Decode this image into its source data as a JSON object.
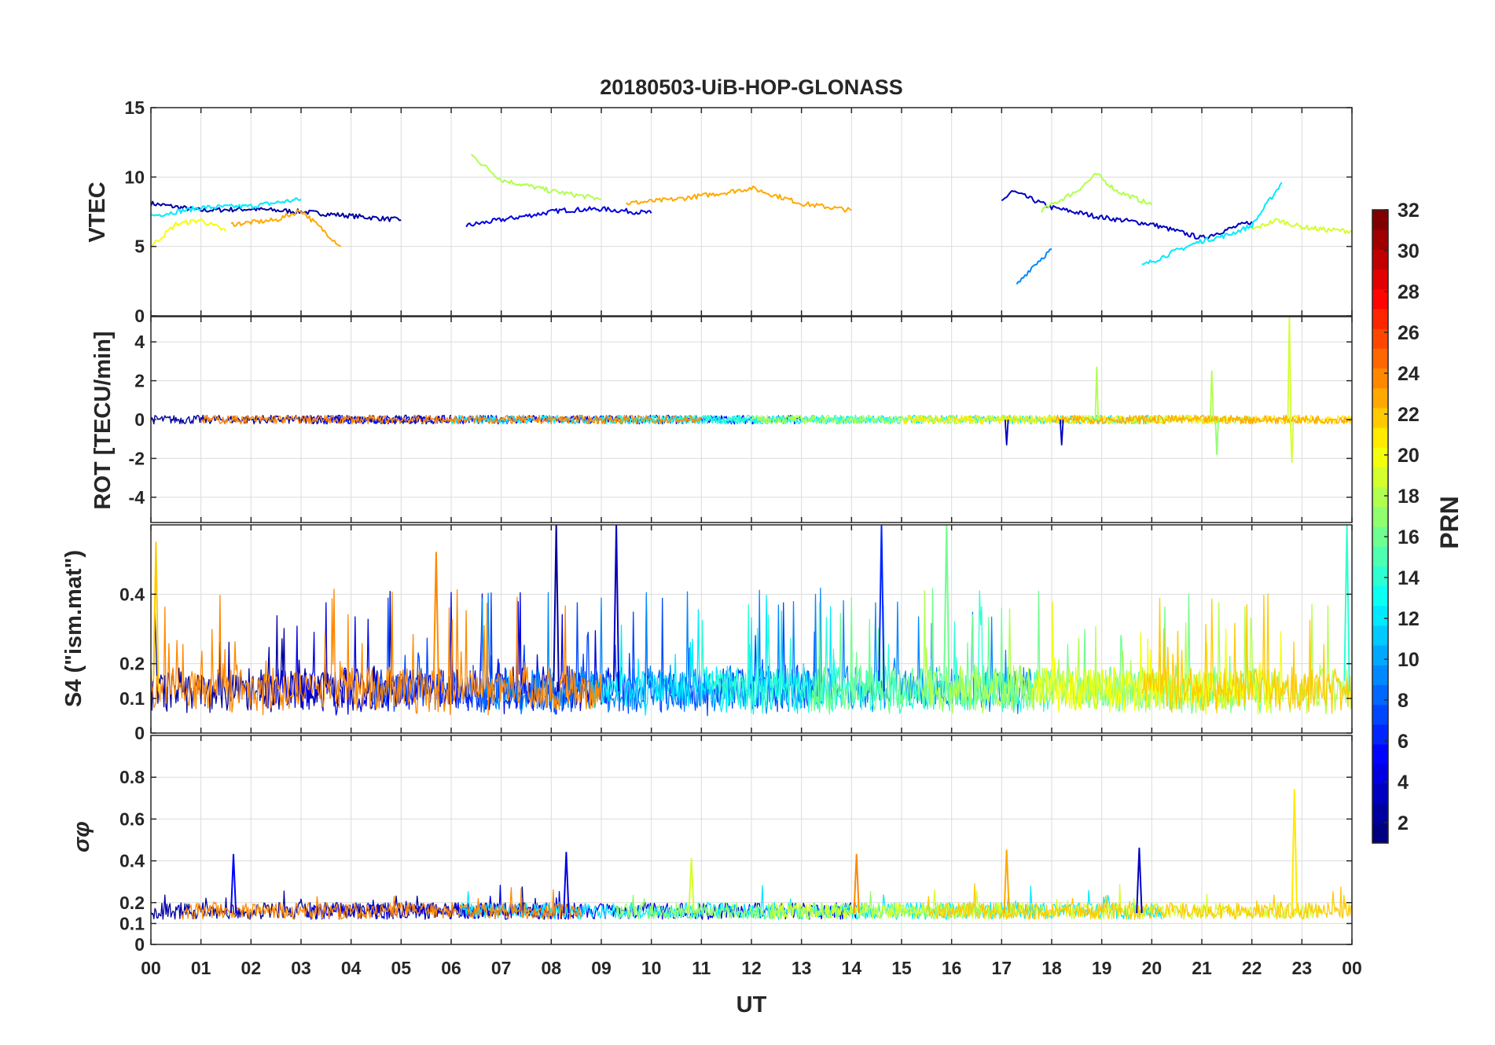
{
  "chart_data": [
    {
      "type": "line",
      "title": "20180503-UiB-HOP-GLONASS",
      "ylabel": "VTEC",
      "ylim": [
        0,
        15
      ],
      "yticks": [
        "0",
        "5",
        "10",
        "15"
      ],
      "grid": true,
      "series": [
        {
          "prn": 2,
          "x": [
            0.0,
            1.0,
            2.0,
            3.0,
            4.0,
            5.0
          ],
          "y": [
            8.1,
            7.6,
            7.7,
            7.5,
            7.2,
            6.9
          ]
        },
        {
          "prn": 4,
          "x": [
            6.3,
            6.8,
            7.5,
            8.2,
            9.0,
            10.0
          ],
          "y": [
            6.5,
            6.8,
            7.2,
            7.6,
            7.7,
            7.4
          ]
        },
        {
          "prn": 3,
          "x": [
            17.0,
            17.2,
            18.0,
            19.0,
            20.0,
            21.0,
            22.0
          ],
          "y": [
            8.2,
            9.0,
            7.8,
            7.1,
            6.6,
            5.6,
            6.8
          ]
        },
        {
          "prn": 12,
          "x": [
            0.0,
            1.0,
            2.0,
            3.0
          ],
          "y": [
            7.2,
            7.8,
            7.9,
            8.4
          ]
        },
        {
          "prn": 18,
          "x": [
            6.4,
            7.0,
            8.0,
            9.0
          ],
          "y": [
            11.6,
            9.8,
            9.0,
            8.4
          ]
        },
        {
          "prn": 18,
          "x": [
            17.8,
            18.5,
            18.9,
            19.3,
            20.0
          ],
          "y": [
            7.6,
            9.0,
            10.2,
            9.0,
            8.0
          ]
        },
        {
          "prn": 23,
          "x": [
            1.6,
            2.5,
            3.0,
            3.8
          ],
          "y": [
            6.6,
            6.9,
            7.6,
            5.0
          ]
        },
        {
          "prn": 23,
          "x": [
            9.5,
            10.5,
            11.5,
            12.0,
            13.0,
            14.0
          ],
          "y": [
            8.1,
            8.4,
            8.9,
            9.2,
            8.1,
            7.6
          ]
        },
        {
          "prn": 9,
          "x": [
            17.3,
            17.6,
            18.0
          ],
          "y": [
            2.2,
            3.5,
            4.8
          ]
        },
        {
          "prn": 12,
          "x": [
            19.8,
            20.5,
            21.0,
            21.5,
            22.0,
            22.6
          ],
          "y": [
            3.6,
            4.7,
            5.4,
            5.8,
            6.5,
            9.6
          ]
        },
        {
          "prn": 20,
          "x": [
            0.0,
            0.5,
            1.0,
            1.5
          ],
          "y": [
            5.0,
            6.6,
            6.9,
            6.1
          ]
        },
        {
          "prn": 19,
          "x": [
            22.0,
            22.5,
            23.0,
            23.5,
            24.0
          ],
          "y": [
            6.2,
            6.9,
            6.4,
            6.2,
            6.1
          ]
        }
      ]
    },
    {
      "type": "line",
      "ylabel": "ROT [TECU/min]",
      "ylim": [
        -5.3,
        5.3
      ],
      "yticks": [
        "-4",
        "-2",
        "0",
        "2",
        "4"
      ],
      "grid": true,
      "spikes": [
        {
          "prn": 18,
          "x": 18.9,
          "y": 2.7
        },
        {
          "prn": 18,
          "x": 21.2,
          "y": 2.5
        },
        {
          "prn": 19,
          "x": 22.75,
          "y": 5.3
        },
        {
          "prn": 19,
          "x": 22.8,
          "y": -2.2
        },
        {
          "prn": 17,
          "x": 21.3,
          "y": -1.8
        },
        {
          "prn": 3,
          "x": 17.1,
          "y": -1.3
        },
        {
          "prn": 3,
          "x": 18.2,
          "y": -1.3
        }
      ]
    },
    {
      "type": "line",
      "ylabel": "S4 (\"ism.mat\")",
      "ylim": [
        0.0,
        0.6
      ],
      "yticks": [
        "0",
        "0.1",
        "0.2",
        "0.4"
      ],
      "grid": true,
      "peaks": [
        {
          "prn": 22,
          "x": 0.1,
          "y": 0.55
        },
        {
          "prn": 24,
          "x": 5.7,
          "y": 0.52
        },
        {
          "prn": 2,
          "x": 8.1,
          "y": 0.6
        },
        {
          "prn": 3,
          "x": 9.3,
          "y": 0.6
        },
        {
          "prn": 6,
          "x": 14.6,
          "y": 0.6
        },
        {
          "prn": 16,
          "x": 15.9,
          "y": 0.6
        },
        {
          "prn": 14,
          "x": 23.9,
          "y": 0.6
        }
      ]
    },
    {
      "type": "line",
      "ylabel": "σφ",
      "ylim": [
        0,
        1
      ],
      "yticks": [
        "0",
        "0.1",
        "0.2",
        "0.4",
        "0.6",
        "0.8"
      ],
      "grid": true,
      "peaks": [
        {
          "prn": 5,
          "x": 1.65,
          "y": 0.43
        },
        {
          "prn": 4,
          "x": 8.3,
          "y": 0.44
        },
        {
          "prn": 19,
          "x": 10.8,
          "y": 0.41
        },
        {
          "prn": 24,
          "x": 14.1,
          "y": 0.43
        },
        {
          "prn": 23,
          "x": 17.1,
          "y": 0.45
        },
        {
          "prn": 3,
          "x": 19.75,
          "y": 0.46
        },
        {
          "prn": 21,
          "x": 22.85,
          "y": 0.74
        }
      ]
    }
  ],
  "xaxis": {
    "label": "UT",
    "ticks": [
      "00",
      "01",
      "02",
      "03",
      "04",
      "05",
      "06",
      "07",
      "08",
      "09",
      "10",
      "11",
      "12",
      "13",
      "14",
      "15",
      "16",
      "17",
      "18",
      "19",
      "20",
      "21",
      "22",
      "23",
      "00"
    ]
  },
  "colorbar": {
    "label": "PRN",
    "colormap": "jet",
    "range": [
      1,
      32
    ],
    "ticks": [
      "2",
      "4",
      "6",
      "8",
      "10",
      "12",
      "14",
      "16",
      "18",
      "20",
      "22",
      "24",
      "26",
      "28",
      "30",
      "32"
    ]
  }
}
